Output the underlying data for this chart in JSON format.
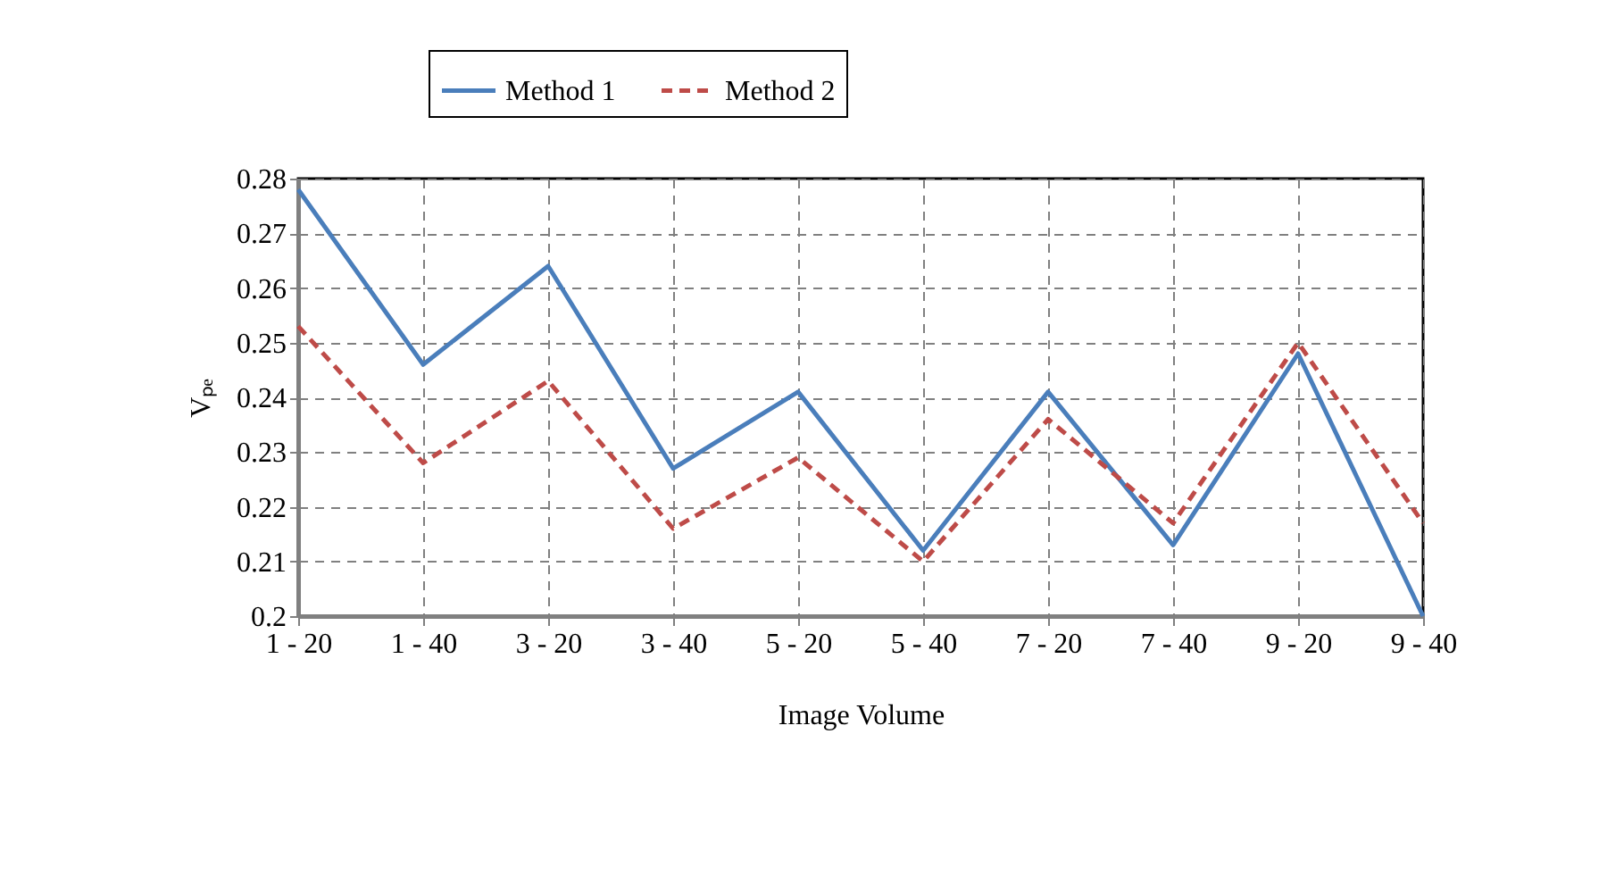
{
  "chart_data": {
    "type": "line",
    "xlabel": "Image Volume",
    "ylabel": "Vₚₑ",
    "categories": [
      "1 - 20",
      "1 - 40",
      "3 - 20",
      "3 - 40",
      "5 - 20",
      "5 - 40",
      "7 - 20",
      "7 - 40",
      "9 - 20",
      "9 - 40"
    ],
    "series": [
      {
        "name": "Method 1",
        "color": "#4a7ebb",
        "line_style": "solid",
        "values": [
          0.278,
          0.246,
          0.264,
          0.227,
          0.241,
          0.212,
          0.241,
          0.213,
          0.248,
          0.2
        ]
      },
      {
        "name": "Method 2",
        "color": "#be4b48",
        "line_style": "dashed",
        "values": [
          0.253,
          0.228,
          0.243,
          0.216,
          0.229,
          0.21,
          0.236,
          0.217,
          0.25,
          0.217
        ]
      }
    ],
    "ylim": [
      0.2,
      0.28
    ],
    "yticks": [
      0.2,
      0.21,
      0.22,
      0.23,
      0.24,
      0.25,
      0.26,
      0.27,
      0.28
    ],
    "grid": true,
    "legend": "top",
    "marker": "none"
  }
}
